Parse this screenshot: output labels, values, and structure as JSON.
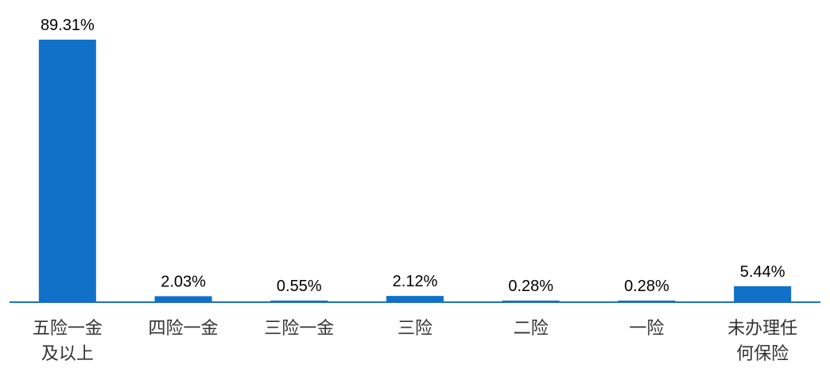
{
  "chart_data": {
    "type": "bar",
    "categories": [
      [
        "五险一金",
        "及以上"
      ],
      [
        "四险一金"
      ],
      [
        "三险一金"
      ],
      [
        "三险"
      ],
      [
        "二险"
      ],
      [
        "一险"
      ],
      [
        "未办理任",
        "何保险"
      ]
    ],
    "values": [
      89.31,
      2.03,
      0.55,
      2.12,
      0.28,
      0.28,
      5.44
    ],
    "value_labels": [
      "89.31%",
      "2.03%",
      "0.55%",
      "2.12%",
      "0.28%",
      "0.28%",
      "5.44%"
    ],
    "title": "",
    "xlabel": "",
    "ylabel": "",
    "ylim": [
      0,
      89.31
    ],
    "grid": false,
    "legend": "none",
    "colors": {
      "bar": "#1170C8",
      "axis": "#1B72C4"
    }
  }
}
